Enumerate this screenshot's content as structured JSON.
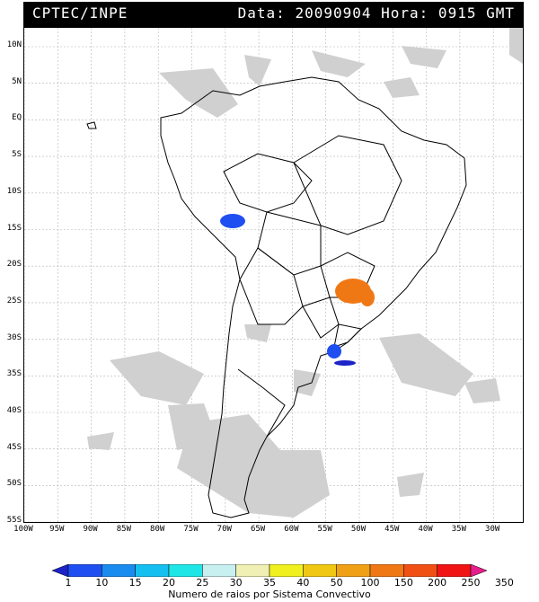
{
  "header": {
    "source": "CPTEC/INPE",
    "datetime": "Data: 20090904 Hora: 0915 GMT"
  },
  "map": {
    "lat_labels": [
      "10N",
      "5N",
      "EQ",
      "5S",
      "10S",
      "15S",
      "20S",
      "25S",
      "30S",
      "35S",
      "40S",
      "45S",
      "50S",
      "55S"
    ],
    "lon_labels": [
      "100W",
      "95W",
      "90W",
      "85W",
      "80W",
      "75W",
      "70W",
      "65W",
      "60W",
      "55W",
      "50W",
      "45W",
      "40W",
      "35W",
      "30W"
    ],
    "cloud_color": "#d0d0d0",
    "border_color": "#000000"
  },
  "legend": {
    "labels": [
      "1",
      "10",
      "15",
      "20",
      "25",
      "30",
      "35",
      "40",
      "50",
      "100",
      "150",
      "200",
      "250",
      "350"
    ],
    "colors": [
      "#1c23c8",
      "#1f4ff0",
      "#1a8cf0",
      "#15c0f0",
      "#1ee6e6",
      "#c8f0f0",
      "#f0f0b4",
      "#f0f01e",
      "#f0c814",
      "#f0a014",
      "#f07814",
      "#f05014",
      "#f01414",
      "#e61e8c"
    ],
    "caption": "Numero de raios por Sistema Convectivo"
  },
  "storms": [
    {
      "name": "storm-peru-bolivia",
      "color": "#1f4ff0",
      "lat": -14.5,
      "lon": -69.5
    },
    {
      "name": "storm-sao-paulo",
      "color": "#f07814",
      "lat": -23,
      "lon": -51
    },
    {
      "name": "storm-uruguay",
      "color": "#1f4ff0",
      "lat": -32.5,
      "lon": -54.5
    }
  ]
}
